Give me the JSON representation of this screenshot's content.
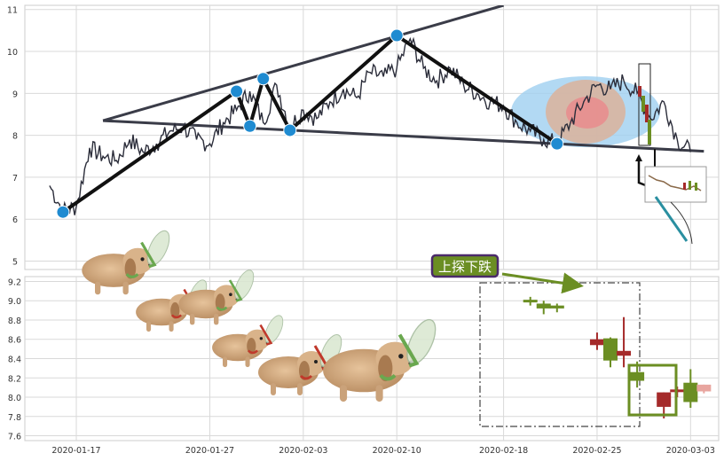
{
  "colors": {
    "panel_bg": "#ffffff",
    "grid": "#d9d9d9",
    "frame": "#cccccc",
    "price_line": "#2b2d3a",
    "pattern_line": "#111111",
    "trend_line": "#3a3c48",
    "pivot": "#1f8bd1",
    "ellipse_outer": "#9fd0f0",
    "ellipse_mid": "#d8b4a0",
    "ellipse_inner": "#e88e8e",
    "candle_up": "#6b8e23",
    "candle_down": "#a52a2a",
    "candle_up_faded": "#c5d99c",
    "candle_down_faded": "#e8a59f",
    "annotation_bg": "#6b8e23",
    "annotation_border": "#4b2a6b",
    "annotation_text": "#ffffff",
    "highlight_box": "#6b8e23",
    "dash_box": "#444444"
  },
  "decorations": {
    "puppy_fairies": "puppy-with-wings-icon",
    "inset_thumbnail": "mini-candlestick-thumbnail-icon"
  },
  "chart_data": [
    {
      "type": "line",
      "panel": "upper",
      "xlabel": "",
      "ylabel": "",
      "x_range": [
        "2020-01-15",
        "2020-03-08"
      ],
      "ylim": [
        4.8,
        11.1
      ],
      "y_ticks": [
        5,
        6,
        7,
        8,
        9,
        10,
        11
      ],
      "grid": true,
      "series": [
        {
          "role": "price",
          "x": [
            "2020-01-15",
            "2020-01-16",
            "2020-01-17",
            "2020-01-18",
            "2020-01-19",
            "2020-01-20",
            "2020-01-21",
            "2020-01-22",
            "2020-01-23",
            "2020-01-24",
            "2020-01-25",
            "2020-01-26",
            "2020-01-27",
            "2020-01-28",
            "2020-01-29",
            "2020-01-30",
            "2020-01-31",
            "2020-02-01",
            "2020-02-02",
            "2020-02-03",
            "2020-02-04",
            "2020-02-05",
            "2020-02-06",
            "2020-02-07",
            "2020-02-08",
            "2020-02-09",
            "2020-02-10",
            "2020-02-11",
            "2020-02-12",
            "2020-02-13",
            "2020-02-14",
            "2020-02-15",
            "2020-02-16",
            "2020-02-17",
            "2020-02-18",
            "2020-02-19",
            "2020-02-20",
            "2020-02-21",
            "2020-02-22",
            "2020-02-23",
            "2020-02-24",
            "2020-02-25",
            "2020-02-26",
            "2020-02-27",
            "2020-02-28",
            "2020-02-29",
            "2020-03-01",
            "2020-03-02",
            "2020-03-03"
          ],
          "y": [
            6.8,
            6.2,
            6.3,
            7.7,
            7.5,
            7.4,
            7.9,
            7.6,
            7.8,
            8.1,
            8.2,
            7.9,
            7.8,
            8.3,
            8.6,
            9.05,
            8.3,
            9.2,
            8.2,
            8.6,
            8.4,
            8.8,
            9.1,
            8.9,
            9.5,
            9.4,
            9.6,
            10.3,
            9.6,
            9.3,
            9.6,
            9.2,
            9.0,
            8.8,
            8.7,
            8.3,
            8.1,
            7.9,
            7.8,
            8.3,
            8.8,
            9.2,
            9.1,
            9.3,
            9.0,
            8.4,
            8.8,
            7.9,
            7.6
          ]
        },
        {
          "role": "zigzag-pivots",
          "x": [
            "2020-01-16",
            "2020-01-29",
            "2020-01-30",
            "2020-01-31",
            "2020-02-02",
            "2020-02-10",
            "2020-02-22"
          ],
          "y": [
            6.17,
            9.05,
            8.22,
            9.35,
            8.12,
            10.38,
            7.8
          ]
        },
        {
          "role": "upper-trend-line",
          "x": [
            "2020-01-19",
            "2020-02-18"
          ],
          "y": [
            8.35,
            11.1
          ]
        },
        {
          "role": "lower-trend-line",
          "x": [
            "2020-01-19",
            "2020-03-04"
          ],
          "y": [
            8.35,
            7.62
          ]
        }
      ]
    },
    {
      "type": "candlestick",
      "panel": "lower",
      "xlabel": "",
      "ylabel": "",
      "ylim": [
        7.55,
        9.25
      ],
      "y_ticks": [
        "7.6",
        "7.8",
        "8.0",
        "8.2",
        "8.4",
        "8.6",
        "8.8",
        "9.0",
        "9.2"
      ],
      "x_tick_labels": [
        "2020-01-17",
        "2020-01-27",
        "2020-02-03",
        "2020-02-10",
        "2020-02-18",
        "2020-02-25",
        "2020-03-03"
      ],
      "grid": true,
      "candles": [
        {
          "x": "2020-02-20",
          "open": 8.99,
          "close": 9.01,
          "high": 9.04,
          "low": 8.95,
          "dir": "up"
        },
        {
          "x": "2020-02-21",
          "open": 8.92,
          "close": 8.97,
          "high": 9.0,
          "low": 8.86,
          "dir": "up"
        },
        {
          "x": "2020-02-22",
          "open": 8.92,
          "close": 8.95,
          "high": 8.97,
          "low": 8.88,
          "dir": "up"
        },
        {
          "x": "2020-02-25",
          "open": 8.6,
          "close": 8.54,
          "high": 8.67,
          "low": 8.49,
          "dir": "down"
        },
        {
          "x": "2020-02-26",
          "open": 8.38,
          "close": 8.61,
          "high": 8.62,
          "low": 8.31,
          "dir": "up"
        },
        {
          "x": "2020-02-27",
          "open": 8.48,
          "close": 8.43,
          "high": 8.83,
          "low": 8.31,
          "dir": "down"
        },
        {
          "x": "2020-02-28",
          "open": 8.17,
          "close": 8.26,
          "high": 8.37,
          "low": 8.1,
          "dir": "up"
        },
        {
          "x": "2020-03-01",
          "open": 8.05,
          "close": 7.9,
          "high": 8.05,
          "low": 7.78,
          "dir": "down"
        },
        {
          "x": "2020-03-02",
          "open": 8.08,
          "close": 8.07,
          "high": 8.11,
          "low": 8.0,
          "dir": "down"
        },
        {
          "x": "2020-03-03",
          "open": 7.95,
          "close": 8.15,
          "high": 8.29,
          "low": 7.89,
          "dir": "up"
        },
        {
          "x": "2020-03-04",
          "open": 8.13,
          "close": 8.06,
          "high": 8.13,
          "low": 8.04,
          "dir": "down",
          "faded": true
        }
      ],
      "annotations": [
        {
          "text": "上探下跌"
        }
      ]
    }
  ]
}
